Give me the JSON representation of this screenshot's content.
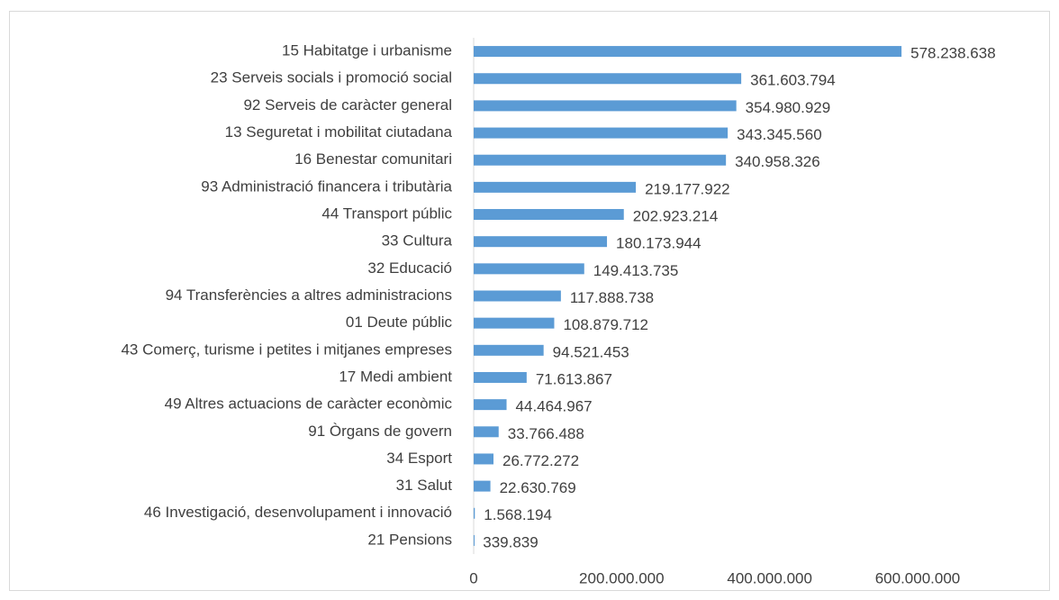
{
  "chart_data": {
    "type": "hbar",
    "categories": [
      "15 Habitatge i urbanisme",
      "23 Serveis socials i promoció social",
      "92 Serveis de caràcter general",
      "13 Seguretat i mobilitat ciutadana",
      "16 Benestar comunitari",
      "93 Administració financera i tributària",
      "44 Transport públic",
      "33 Cultura",
      "32 Educació",
      "94 Transferències a altres administracions",
      "01 Deute públic",
      "43 Comerç, turisme i petites i mitjanes empreses",
      "17 Medi ambient",
      "49 Altres actuacions de caràcter econòmic",
      "91 Òrgans de govern",
      "34 Esport",
      "31 Salut",
      "46 Investigació, desenvolupament i innovació",
      "21 Pensions"
    ],
    "values": [
      578238638,
      361603794,
      354980929,
      343345560,
      340958326,
      219177922,
      202923214,
      180173944,
      149413735,
      117888738,
      108879712,
      94521453,
      71613867,
      44464967,
      33766488,
      26772272,
      22630769,
      1568194,
      339839
    ],
    "value_labels": [
      "578.238.638",
      "361.603.794",
      "354.980.929",
      "343.345.560",
      "340.958.326",
      "219.177.922",
      "202.923.214",
      "180.173.944",
      "149.413.735",
      "117.888.738",
      "108.879.712",
      "94.521.453",
      "71.613.867",
      "44.464.967",
      "33.766.488",
      "26.772.272",
      "22.630.769",
      "1.568.194",
      "339.839"
    ],
    "color": "#5b9bd5",
    "xlim": [
      0,
      600000000
    ],
    "xticks": [
      0,
      {
        "value": 200000000,
        "label": "200.000.000"
      },
      {
        "value": 400000000,
        "label": "400.000.000"
      },
      {
        "value": 600000000,
        "label": "600.000.000"
      }
    ]
  }
}
